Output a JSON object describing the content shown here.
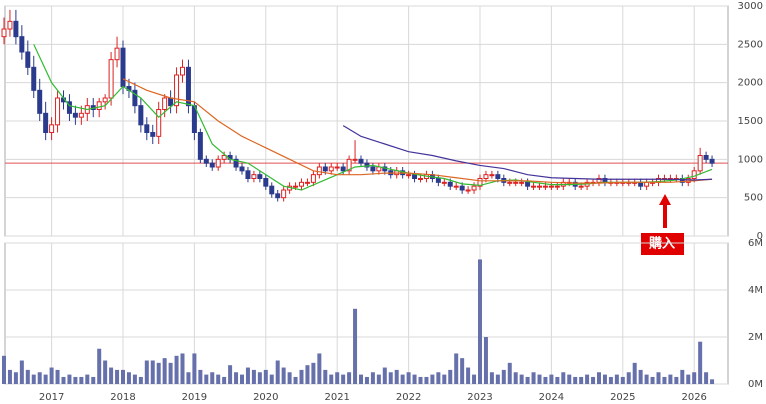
{
  "chart_data": [
    {
      "type": "candlestick",
      "open": [
        2600,
        2700,
        2800,
        2600,
        2400,
        2200,
        1900,
        1600,
        1350,
        1450,
        1800,
        1750,
        1600,
        1550,
        1600,
        1700,
        1650,
        1750,
        1800,
        2300,
        2450,
        1950,
        1900,
        1700,
        1450,
        1350,
        1300,
        1650,
        1800,
        1700,
        2100,
        2200,
        1700,
        1350,
        1000,
        950,
        900,
        1000,
        1050,
        1000,
        900,
        850,
        750,
        800,
        750,
        650,
        550,
        500,
        600,
        650,
        650,
        700,
        700,
        800,
        900,
        850,
        900,
        900,
        850,
        1000,
        1000,
        950,
        900,
        850,
        900,
        850,
        800,
        850,
        800,
        800,
        750,
        750,
        800,
        750,
        700,
        700,
        650,
        650,
        600,
        600,
        650,
        750,
        800,
        800,
        750,
        700,
        700,
        700,
        700,
        650,
        650,
        650,
        650,
        650,
        650,
        700,
        700,
        650,
        650,
        700,
        700,
        750,
        700,
        700,
        700,
        700,
        700,
        700,
        650,
        700,
        700,
        750,
        750,
        750,
        750,
        700,
        750,
        850,
        1050,
        1000
      ],
      "high": [
        2850,
        2950,
        2950,
        2750,
        2550,
        2350,
        2050,
        1750,
        1550,
        1900,
        1900,
        1850,
        1700,
        1700,
        1800,
        1800,
        1800,
        1850,
        2400,
        2600,
        2550,
        2050,
        2000,
        1800,
        1550,
        1450,
        1750,
        1850,
        1900,
        2200,
        2300,
        2300,
        1750,
        1400,
        1050,
        1000,
        1050,
        1100,
        1100,
        1050,
        950,
        900,
        850,
        850,
        800,
        700,
        600,
        650,
        700,
        700,
        750,
        750,
        850,
        950,
        950,
        950,
        950,
        950,
        1050,
        1250,
        1050,
        1000,
        950,
        950,
        950,
        900,
        900,
        900,
        850,
        850,
        800,
        850,
        850,
        800,
        750,
        750,
        700,
        700,
        650,
        700,
        800,
        850,
        850,
        850,
        800,
        750,
        750,
        750,
        750,
        700,
        700,
        700,
        700,
        700,
        750,
        750,
        750,
        700,
        750,
        750,
        800,
        800,
        750,
        750,
        750,
        750,
        750,
        750,
        750,
        750,
        800,
        800,
        800,
        800,
        800,
        800,
        900,
        1150,
        1100,
        1050
      ],
      "low": [
        2500,
        2600,
        2500,
        2300,
        2100,
        1800,
        1500,
        1250,
        1250,
        1350,
        1650,
        1500,
        1450,
        1450,
        1500,
        1550,
        1550,
        1650,
        1700,
        2200,
        1850,
        1800,
        1600,
        1350,
        1250,
        1200,
        1200,
        1550,
        1600,
        1600,
        2000,
        1600,
        1250,
        950,
        900,
        850,
        850,
        950,
        950,
        850,
        800,
        700,
        700,
        700,
        600,
        500,
        450,
        450,
        550,
        600,
        600,
        650,
        650,
        750,
        800,
        800,
        850,
        800,
        800,
        950,
        900,
        850,
        800,
        800,
        800,
        750,
        750,
        750,
        750,
        700,
        700,
        700,
        700,
        650,
        650,
        600,
        600,
        550,
        550,
        550,
        600,
        700,
        750,
        700,
        650,
        650,
        650,
        650,
        600,
        600,
        600,
        600,
        600,
        600,
        600,
        650,
        600,
        600,
        600,
        650,
        650,
        650,
        650,
        650,
        650,
        650,
        650,
        600,
        600,
        650,
        650,
        700,
        700,
        700,
        650,
        650,
        700,
        800,
        950,
        900
      ],
      "close": [
        2700,
        2800,
        2600,
        2400,
        2200,
        1900,
        1600,
        1350,
        1450,
        1800,
        1750,
        1600,
        1550,
        1600,
        1700,
        1650,
        1750,
        1800,
        2300,
        2450,
        1950,
        1900,
        1700,
        1450,
        1350,
        1300,
        1650,
        1800,
        1700,
        2100,
        2200,
        1700,
        1350,
        1000,
        950,
        900,
        1000,
        1050,
        1000,
        900,
        850,
        750,
        800,
        750,
        650,
        550,
        500,
        600,
        650,
        650,
        700,
        700,
        800,
        900,
        850,
        900,
        900,
        850,
        1000,
        1000,
        950,
        900,
        850,
        900,
        850,
        800,
        850,
        800,
        800,
        750,
        750,
        800,
        750,
        700,
        700,
        650,
        650,
        600,
        600,
        650,
        750,
        800,
        800,
        750,
        700,
        700,
        700,
        700,
        650,
        650,
        650,
        650,
        650,
        650,
        700,
        700,
        650,
        650,
        700,
        700,
        750,
        700,
        700,
        700,
        700,
        700,
        700,
        650,
        700,
        700,
        750,
        750,
        750,
        750,
        700,
        750,
        850,
        1050,
        1000,
        950
      ],
      "up_color": "#dd2222",
      "down_color": "#2a3a8c",
      "series": [
        {
          "color": "#33bb33",
          "x": [
            5,
            8,
            11,
            14,
            17,
            20,
            23,
            26,
            29,
            32,
            35,
            38,
            41,
            44,
            47,
            50,
            53,
            56,
            59,
            62,
            65,
            68,
            71,
            74,
            77,
            80,
            83,
            86,
            89,
            92,
            95,
            98,
            101,
            104,
            107,
            110,
            113,
            116,
            119
          ],
          "values": [
            2500,
            2000,
            1700,
            1650,
            1700,
            1950,
            1800,
            1550,
            1750,
            1700,
            1200,
            1000,
            950,
            800,
            650,
            600,
            700,
            800,
            900,
            920,
            870,
            820,
            780,
            750,
            680,
            660,
            720,
            730,
            700,
            670,
            670,
            680,
            700,
            700,
            700,
            710,
            730,
            780,
            870
          ]
        },
        {
          "color": "#dd6622",
          "x": [
            20,
            24,
            28,
            32,
            36,
            40,
            44,
            48,
            52,
            56,
            60,
            64,
            68,
            72,
            76,
            80,
            84,
            88,
            92,
            96,
            100,
            104,
            108,
            112,
            116,
            119
          ],
          "values": [
            2050,
            1900,
            1800,
            1750,
            1500,
            1300,
            1150,
            1000,
            850,
            800,
            800,
            820,
            820,
            800,
            760,
            720,
            720,
            720,
            700,
            690,
            690,
            700,
            700,
            700,
            720,
            740
          ]
        },
        {
          "color": "#443399",
          "x": [
            57,
            60,
            64,
            68,
            72,
            76,
            80,
            84,
            88,
            92,
            96,
            100,
            104,
            108,
            112,
            116,
            119
          ],
          "values": [
            1440,
            1300,
            1200,
            1100,
            1050,
            980,
            920,
            880,
            800,
            760,
            750,
            740,
            740,
            740,
            740,
            730,
            740
          ]
        }
      ],
      "reference_line": 950,
      "reference_color": "#e05050",
      "annotation": "購入",
      "ylim": [
        0,
        3000
      ],
      "yticks": [
        0,
        500,
        1000,
        1500,
        2000,
        2500,
        3000
      ],
      "grid": true
    },
    {
      "type": "bar",
      "color": "#6670aa",
      "values": [
        1.2,
        0.6,
        0.5,
        1.0,
        0.6,
        0.4,
        0.5,
        0.4,
        0.7,
        0.6,
        0.3,
        0.4,
        0.3,
        0.3,
        0.4,
        0.3,
        1.5,
        1.0,
        0.7,
        0.6,
        0.6,
        0.5,
        0.4,
        0.3,
        1.0,
        1.0,
        0.9,
        1.1,
        0.9,
        1.2,
        1.3,
        0.5,
        1.3,
        0.6,
        0.4,
        0.5,
        0.4,
        0.3,
        0.8,
        0.5,
        0.4,
        0.7,
        0.6,
        0.5,
        0.6,
        0.4,
        1.0,
        0.7,
        0.5,
        0.3,
        0.6,
        0.8,
        0.9,
        1.3,
        0.6,
        0.4,
        0.5,
        0.4,
        0.5,
        3.2,
        0.4,
        0.3,
        0.5,
        0.4,
        0.7,
        0.5,
        0.6,
        0.4,
        0.5,
        0.4,
        0.3,
        0.3,
        0.4,
        0.5,
        0.4,
        0.6,
        1.3,
        1.1,
        0.7,
        0.4,
        5.3,
        2.0,
        0.5,
        0.4,
        0.6,
        0.9,
        0.5,
        0.4,
        0.3,
        0.5,
        0.4,
        0.3,
        0.4,
        0.3,
        0.5,
        0.4,
        0.3,
        0.3,
        0.4,
        0.3,
        0.5,
        0.4,
        0.3,
        0.4,
        0.3,
        0.5,
        0.9,
        0.6,
        0.4,
        0.3,
        0.5,
        0.3,
        0.4,
        0.3,
        0.6,
        0.4,
        0.5,
        1.8,
        0.5,
        0.2
      ],
      "ylim": [
        0,
        6
      ],
      "yticks": [
        {
          "value": 0,
          "label": "0M"
        },
        {
          "value": 2,
          "label": "2M"
        },
        {
          "value": 4,
          "label": "4M"
        },
        {
          "value": 6,
          "label": "6M"
        }
      ],
      "xticks": [
        {
          "value": 8,
          "label": "2017"
        },
        {
          "value": 20,
          "label": "2018"
        },
        {
          "value": 32,
          "label": "2019"
        },
        {
          "value": 44,
          "label": "2020"
        },
        {
          "value": 56,
          "label": "2021"
        },
        {
          "value": 68,
          "label": "2022"
        },
        {
          "value": 80,
          "label": "2023"
        },
        {
          "value": 92,
          "label": "2024"
        },
        {
          "value": 104,
          "label": "2025"
        },
        {
          "value": 116,
          "label": "2026"
        }
      ],
      "grid": true
    }
  ]
}
